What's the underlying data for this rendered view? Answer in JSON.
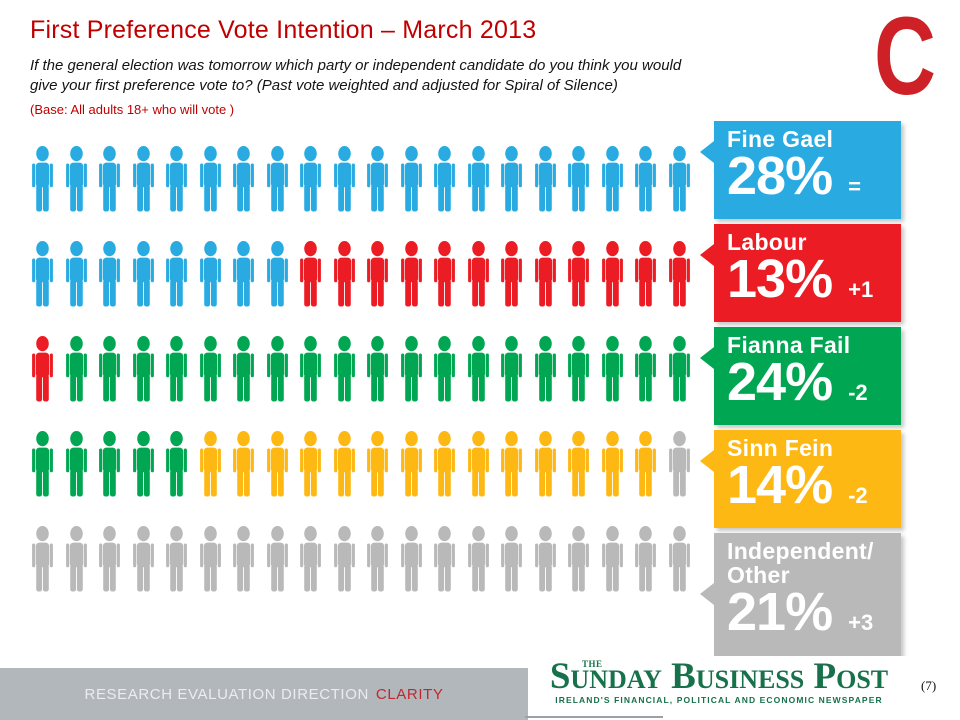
{
  "slide": {
    "title": "First Preference Vote Intention – March 2013",
    "question_line1": "If the general election was tomorrow which party or independent  candidate do you think you would",
    "question_line2": "give your first preference vote to?  (Past vote weighted and adjusted for Spiral of Silence)",
    "base_note": "(Base: All adults 18+ who will vote )",
    "brand_letter": "C",
    "page_number": "(7)"
  },
  "footer": {
    "tagline_words": "RESEARCH EVALUATION DIRECTION",
    "tagline_accent": "CLARITY",
    "newspaper": {
      "the": "THE",
      "name": "Sunday Business Post",
      "tagline": "IRELAND'S FINANCIAL, POLITICAL AND ECONOMIC NEWSPAPER"
    }
  },
  "chart_data": {
    "type": "pictograph",
    "title": "First Preference Vote Intention – March 2013",
    "subtitle": "If the general election was tomorrow which party or independent candidate do you think you would give your first preference vote to? (Past vote weighted and adjusted for Spiral of Silence)",
    "base": "All adults 18+ who will vote",
    "icon_unit_pct": 1,
    "total_icons": 100,
    "grid": {
      "rows": 5,
      "cols": 20
    },
    "series": [
      {
        "name": "Fine Gael",
        "display_name": "Fine Gael",
        "value_pct": 28,
        "change": "=",
        "color": "#29ABE2"
      },
      {
        "name": "Labour",
        "display_name": "Labour",
        "value_pct": 13,
        "change": "+1",
        "color": "#EC1C24"
      },
      {
        "name": "Fianna Fail",
        "display_name": "Fianna Fail",
        "value_pct": 24,
        "change": "-2",
        "color": "#00A651"
      },
      {
        "name": "Sinn Fein",
        "display_name": "Sinn Fein",
        "value_pct": 14,
        "change": "-2",
        "color": "#FDB813"
      },
      {
        "name": "Independent/Other",
        "display_name": "Independent/\nOther",
        "value_pct": 21,
        "change": "+3",
        "color": "#B9B9B9"
      }
    ],
    "legend_position": "right",
    "icon_colors_note": "icons fill left-to-right, top-to-bottom in series order"
  }
}
